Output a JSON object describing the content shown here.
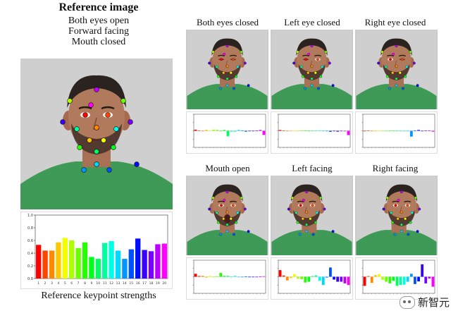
{
  "reference": {
    "title": "Reference image",
    "lines": [
      "Both eyes open",
      "Forward facing",
      "Mouth closed"
    ],
    "caption": "Reference keypoint strengths"
  },
  "panels": [
    {
      "title": "Both eyes closed",
      "pose": "closed"
    },
    {
      "title": "Left eye closed",
      "pose": "leftclosed"
    },
    {
      "title": "Right eye closed",
      "pose": "rightclosed"
    },
    {
      "title": "Mouth open",
      "pose": "mouth"
    },
    {
      "title": "Left facing",
      "pose": "left"
    },
    {
      "title": "Right facing",
      "pose": "right"
    }
  ],
  "chart_data": [
    {
      "type": "bar",
      "categories": [
        "1",
        "2",
        "3",
        "4",
        "5",
        "6",
        "7",
        "8",
        "9",
        "10",
        "11",
        "12",
        "13",
        "14",
        "15",
        "16",
        "17",
        "18",
        "19",
        "20"
      ],
      "values": [
        0.53,
        0.44,
        0.44,
        0.57,
        0.64,
        0.6,
        0.48,
        0.57,
        0.34,
        0.31,
        0.56,
        0.59,
        0.44,
        0.31,
        0.46,
        0.63,
        0.45,
        0.43,
        0.54,
        0.55
      ],
      "ylim": [
        0,
        1.0
      ],
      "yticks": [
        "0.0",
        "0.2",
        "0.4",
        "0.6",
        "0.8",
        "1.0"
      ]
    },
    {
      "type": "bar",
      "ylim": [
        -1,
        1
      ],
      "values": [
        0.07,
        0.02,
        0.0,
        0.06,
        0.02,
        0.07,
        0.05,
        0.0,
        0.05,
        -0.33,
        -0.05,
        -0.05,
        0.05,
        0.02,
        -0.05,
        -0.02,
        0.0,
        0.02,
        0.05,
        -0.25
      ]
    },
    {
      "type": "bar",
      "ylim": [
        -1,
        1
      ],
      "values": [
        0.05,
        0.02,
        0.0,
        0.0,
        0.0,
        0.0,
        0.02,
        0.02,
        0.0,
        0.0,
        -0.02,
        0.02,
        0.0,
        0.0,
        -0.06,
        0.0,
        -0.05,
        0.0,
        0.0,
        -0.26
      ]
    },
    {
      "type": "bar",
      "ylim": [
        -1,
        1
      ],
      "values": [
        0.0,
        0.02,
        0.0,
        0.0,
        0.0,
        0.0,
        0.0,
        0.0,
        0.0,
        0.0,
        0.0,
        -0.02,
        -0.02,
        -0.35,
        0.02,
        0.05,
        0.0,
        0.02,
        0.02,
        -0.05
      ]
    },
    {
      "type": "bar",
      "ylim": [
        -1,
        1
      ],
      "values": [
        0.18,
        0.05,
        0.05,
        -0.05,
        0.05,
        0.0,
        0.03,
        0.23,
        0.05,
        0.05,
        0.0,
        0.05,
        0.0,
        0.0,
        0.02,
        0.0,
        0.0,
        0.0,
        0.02,
        0.03
      ]
    },
    {
      "type": "bar",
      "ylim": [
        -1,
        1
      ],
      "values": [
        0.4,
        0.08,
        -0.22,
        -0.08,
        0.16,
        -0.12,
        -0.14,
        -0.35,
        -0.3,
        0.04,
        0.08,
        -0.25,
        -0.5,
        -0.05,
        0.56,
        -0.17,
        -0.3,
        -0.3,
        -0.4,
        -0.5
      ]
    },
    {
      "type": "bar",
      "ylim": [
        -1,
        1
      ],
      "values": [
        -0.55,
        0.04,
        -0.37,
        0.1,
        0.16,
        -0.18,
        -0.3,
        -0.4,
        -0.25,
        -0.55,
        -0.5,
        -0.48,
        -0.3,
        0.18,
        -0.44,
        -0.28,
        0.75,
        -0.4,
        -0.1,
        -0.6
      ]
    }
  ],
  "watermark": {
    "text": "新智元"
  }
}
